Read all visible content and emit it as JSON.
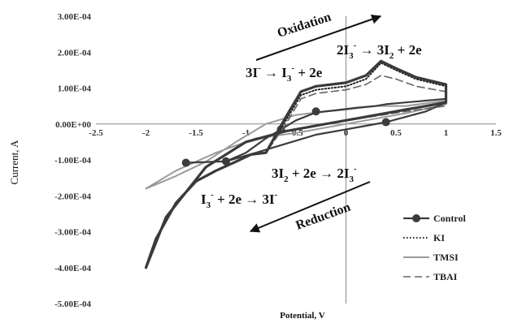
{
  "chart_data": {
    "type": "line",
    "xlabel": "Potential, V",
    "ylabel": "Current, A",
    "xlim": [
      -2.5,
      1.5
    ],
    "ylim": [
      -0.0005,
      0.0003
    ],
    "x_ticks": [
      "-2.5",
      "-2",
      "-1.5",
      "-1",
      "-0.5",
      "0",
      "0.5",
      "1",
      "1.5"
    ],
    "y_ticks": [
      "3.00E-04",
      "2.00E-04",
      "1.00E-04",
      "0.00E+00",
      "-1.00E-04",
      "-2.00E-04",
      "-3.00E-04",
      "-4.00E-04",
      "-5.00E-04"
    ],
    "legend_position": "bottom-right",
    "annotations": {
      "oxidation": "Oxidation",
      "reduction": "Reduction",
      "r1_lhs": "3I",
      "r1_mid": " → I",
      "r1_rhs": " + 2e",
      "r2_lhs": "2I",
      "r2_mid": " → 3I",
      "r2_rhs": " + 2e",
      "r3_lhs": "3I",
      "r3_mid": " + 2e → 2I",
      "r4_lhs": "I",
      "r4_mid": " + 2e → 3I",
      "sub_2": "2",
      "sub_3": "3",
      "sup_minus": "-"
    },
    "series": [
      {
        "name": "Control",
        "color": "#3c3c3c",
        "style": "solid-marker",
        "x": [
          -1.6,
          -1.4,
          -1.2,
          -1.0,
          -0.8,
          -0.65,
          -0.5,
          -0.3,
          -0.1,
          0.1,
          0.3,
          0.4,
          0.6,
          0.8,
          1.0,
          1.0,
          0.8,
          0.6,
          0.4,
          0.2,
          0.0,
          -0.3,
          -0.6,
          -0.9,
          -1.2,
          -1.6
        ],
        "y": [
          -0.000108,
          -0.000106,
          -0.000104,
          -8e-05,
          -4e-05,
          -1.5e-05,
          1e-05,
          3.2e-05,
          3.8e-05,
          4.5e-05,
          5e-05,
          5.5e-05,
          6e-05,
          6.5e-05,
          7e-05,
          6e-05,
          3.5e-05,
          2e-05,
          5e-06,
          -5e-06,
          -1.5e-05,
          -3e-05,
          -5.5e-05,
          -8e-05,
          -0.000104,
          -0.000108
        ],
        "markers_x": [
          -1.6,
          -1.2,
          -0.65,
          -0.3,
          0.4
        ],
        "markers_y": [
          -0.000108,
          -0.000104,
          -1.5e-05,
          3.5e-05,
          5e-06
        ]
      },
      {
        "name": "KI",
        "color": "#222222",
        "style": "dotted",
        "x": [
          -2.0,
          -1.9,
          -1.7,
          -1.5,
          -1.3,
          -1.1,
          -0.95,
          -0.8,
          -0.6,
          -0.45,
          -0.3,
          -0.15,
          0.0,
          0.2,
          0.35,
          0.5,
          0.7,
          1.0,
          1.0,
          0.6,
          0.2,
          -0.2,
          -0.6,
          -1.0,
          -1.4,
          -1.8,
          -2.0
        ],
        "y": [
          -0.0004,
          -0.00032,
          -0.00022,
          -0.00016,
          -0.00013,
          -0.000105,
          -8.5e-05,
          -8e-05,
          1e-05,
          8e-05,
          9.5e-05,
          0.0001,
          0.000105,
          0.000125,
          0.00017,
          0.00015,
          0.000125,
          0.000105,
          6e-05,
          4e-05,
          2e-05,
          0.0,
          -2e-05,
          -5e-05,
          -0.00012,
          -0.00026,
          -0.0004
        ]
      },
      {
        "name": "TMSI",
        "color": "#999999",
        "style": "solid",
        "x": [
          -2.0,
          -1.7,
          -1.4,
          -1.1,
          -0.8,
          -0.5,
          -0.2,
          0.0,
          0.3,
          0.6,
          1.0,
          1.0,
          0.6,
          0.2,
          -0.2,
          -0.5,
          -0.9,
          -1.3,
          -1.7,
          -2.0
        ],
        "y": [
          -0.00018,
          -0.000145,
          -0.000105,
          -5e-05,
          0.0,
          2.5e-05,
          3.5e-05,
          4e-05,
          5e-05,
          5e-05,
          6.5e-05,
          5.5e-05,
          3e-05,
          1e-05,
          -1e-05,
          -2.5e-05,
          -4e-05,
          -8e-05,
          -0.00013,
          -0.00018
        ]
      },
      {
        "name": "TBAI",
        "color": "#666666",
        "style": "dashed",
        "x": [
          -2.0,
          -1.9,
          -1.7,
          -1.5,
          -1.3,
          -1.1,
          -0.95,
          -0.8,
          -0.6,
          -0.45,
          -0.3,
          -0.15,
          0.0,
          0.2,
          0.35,
          0.5,
          0.7,
          1.0,
          1.0,
          0.6,
          0.2,
          -0.2,
          -0.6,
          -1.0,
          -1.4,
          -1.8,
          -2.0
        ],
        "y": [
          -0.0004,
          -0.00032,
          -0.00022,
          -0.00016,
          -0.00013,
          -0.000105,
          -8.5e-05,
          -8e-05,
          0.0,
          7e-05,
          8.5e-05,
          9e-05,
          9.5e-05,
          0.00011,
          0.000135,
          0.000125,
          0.000105,
          9e-05,
          5e-05,
          3.5e-05,
          1.8e-05,
          0.0,
          -2e-05,
          -5e-05,
          -0.00012,
          -0.00026,
          -0.0004
        ]
      },
      {
        "name": "",
        "color": "#3a3a3a",
        "style": "bold",
        "x": [
          -2.0,
          -1.9,
          -1.7,
          -1.5,
          -1.3,
          -1.1,
          -0.95,
          -0.8,
          -0.6,
          -0.45,
          -0.3,
          -0.15,
          0.0,
          0.2,
          0.35,
          0.5,
          0.7,
          1.0,
          1.0,
          0.6,
          0.2,
          -0.2,
          -0.6,
          -1.0,
          -1.4,
          -1.8,
          -2.0
        ],
        "y": [
          -0.0004,
          -0.00032,
          -0.00022,
          -0.00016,
          -0.00013,
          -0.000105,
          -8.5e-05,
          -8e-05,
          2e-05,
          9e-05,
          0.000105,
          0.00011,
          0.000115,
          0.000135,
          0.000175,
          0.000155,
          0.00013,
          0.00011,
          6e-05,
          4e-05,
          2e-05,
          0.0,
          -2e-05,
          -5e-05,
          -0.00012,
          -0.00026,
          -0.0004
        ]
      }
    ]
  }
}
